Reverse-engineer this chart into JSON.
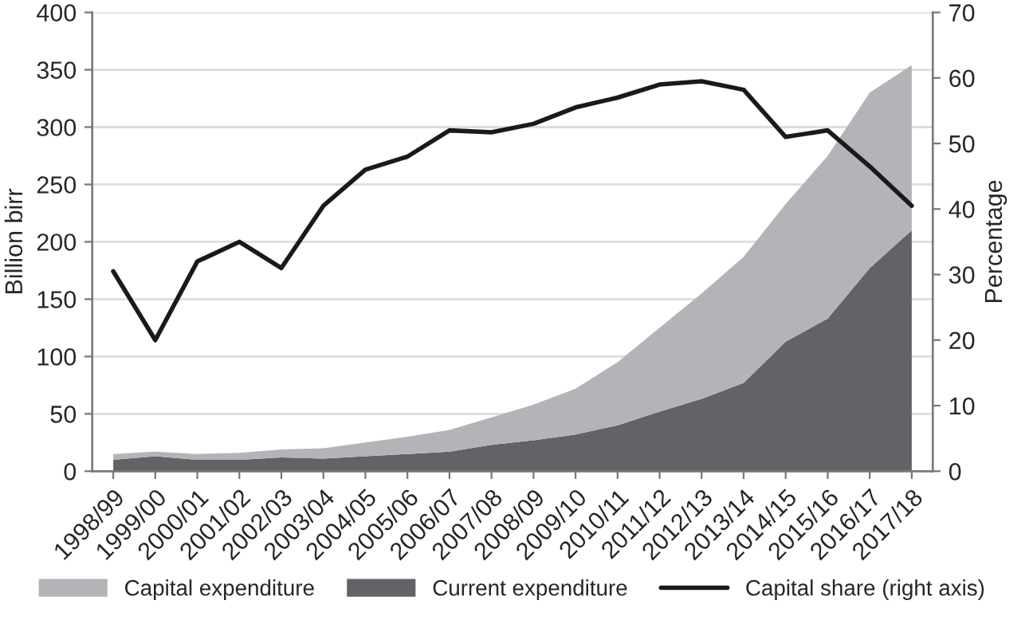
{
  "chart_data": {
    "type": "area",
    "stacked": true,
    "categories": [
      "1998/99",
      "1999/00",
      "2000/01",
      "2001/02",
      "2002/03",
      "2003/04",
      "2004/05",
      "2005/06",
      "2006/07",
      "2007/08",
      "2008/09",
      "2009/10",
      "2010/11",
      "2011/12",
      "2012/13",
      "2013/14",
      "2014/15",
      "2015/16",
      "2016/17",
      "2017/18"
    ],
    "series": [
      {
        "name": "Current expenditure",
        "color": "#626366",
        "values": [
          10,
          13,
          10,
          10,
          12,
          11,
          13,
          15,
          17,
          23,
          27,
          32,
          40,
          52,
          63,
          77,
          113,
          133,
          177,
          210
        ]
      },
      {
        "name": "Capital expenditure",
        "color": "#b3b4b7",
        "values": [
          5,
          4,
          5,
          6,
          7,
          9,
          12,
          15,
          19,
          24,
          31,
          40,
          55,
          73,
          92,
          110,
          120,
          142,
          153,
          144
        ]
      },
      {
        "name": "Capital share (right axis)",
        "color": "#1a1a1a",
        "type": "line",
        "axis": "y2",
        "values": [
          30.5,
          20,
          32,
          35,
          31,
          40.5,
          46,
          48,
          52,
          51.7,
          53,
          55.5,
          57,
          59,
          59.5,
          58.2,
          51,
          52,
          46.5,
          40.5
        ]
      }
    ],
    "ylabel": "Billion birr",
    "y2label": "Percentage",
    "ylim": [
      0,
      400
    ],
    "yticks": [
      0,
      50,
      100,
      150,
      200,
      250,
      300,
      350,
      400
    ],
    "y2lim": [
      0,
      70
    ],
    "y2ticks": [
      0,
      10,
      20,
      30,
      40,
      50,
      60,
      70
    ],
    "grid": "y",
    "legend": "bottom"
  }
}
